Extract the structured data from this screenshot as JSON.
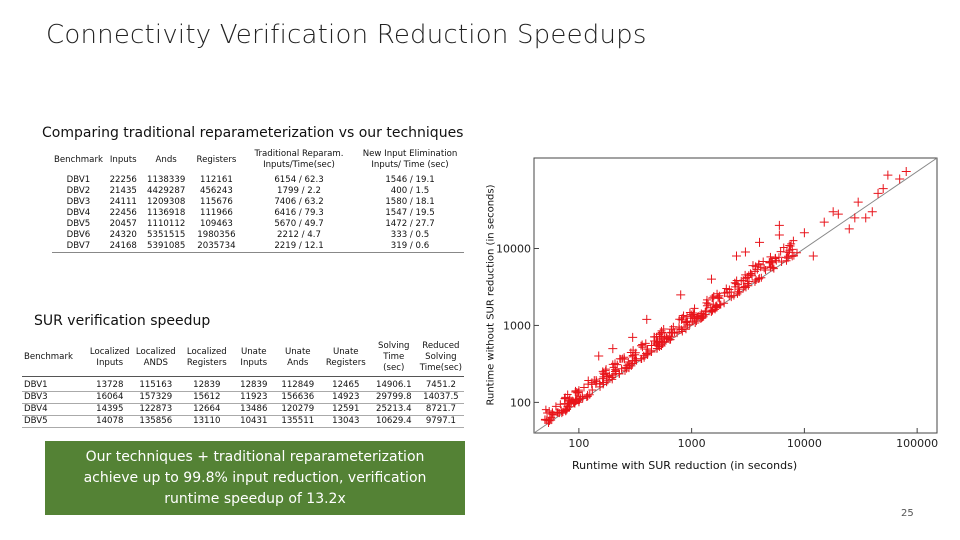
{
  "slide": {
    "title": "Connectivity Verification Reduction Speedups",
    "subtitle": "Comparing traditional reparameterization vs our techniques",
    "sur_title": "SUR verification speedup",
    "callout": "Our techniques + traditional reparameterization achieve up to 99.8% input reduction, verification runtime speedup of 13.2x",
    "page_number": "25"
  },
  "table1": {
    "headers": [
      "Benchmark",
      "Inputs",
      "Ands",
      "Registers",
      "Traditional Reparam. Inputs/Time(sec)",
      "New Input Elimination Inputs/ Time (sec)"
    ],
    "rows": [
      [
        "DBV1",
        "22256",
        "1138339",
        "112161",
        "6154 / 62.3",
        "1546 / 19.1"
      ],
      [
        "DBV2",
        "21435",
        "4429287",
        "456243",
        "1799 / 2.2",
        "400 / 1.5"
      ],
      [
        "DBV3",
        "24111",
        "1209308",
        "115676",
        "7406 / 63.2",
        "1580 / 18.1"
      ],
      [
        "DBV4",
        "22456",
        "1136918",
        "111966",
        "6416 / 79.3",
        "1547 / 19.5"
      ],
      [
        "DBV5",
        "20457",
        "1110112",
        "109463",
        "5670 / 49.7",
        "1472 / 27.7"
      ],
      [
        "DBV6",
        "24320",
        "5351515",
        "1980356",
        "2212 / 4.7",
        "333 / 0.5"
      ],
      [
        "DBV7",
        "24168",
        "5391085",
        "2035734",
        "2219 / 12.1",
        "319 / 0.6"
      ]
    ]
  },
  "table2": {
    "headers": [
      "Benchmark",
      "Localized Inputs",
      "Localized ANDS",
      "Localized Registers",
      "Unate Inputs",
      "Unate Ands",
      "Unate Registers",
      "Solving Time (sec)",
      "Reduced Solving Time(sec)"
    ],
    "rows": [
      [
        "DBV1",
        "13728",
        "115163",
        "12839",
        "12839",
        "112849",
        "12465",
        "14906.1",
        "7451.2"
      ],
      [
        "DBV3",
        "16064",
        "157329",
        "15612",
        "11923",
        "156636",
        "14923",
        "29799.8",
        "14037.5"
      ],
      [
        "DBV4",
        "14395",
        "122873",
        "12664",
        "13486",
        "120279",
        "12591",
        "25213.4",
        "8721.7"
      ],
      [
        "DBV5",
        "14078",
        "135856",
        "13110",
        "10431",
        "135511",
        "13043",
        "10629.4",
        "9797.1"
      ]
    ]
  },
  "chart_data": {
    "type": "scatter",
    "title": "",
    "xlabel": "Runtime with SUR reduction (in seconds)",
    "ylabel": "Runtime without SUR reduction (in seconds)",
    "xscale": "log",
    "yscale": "log",
    "xlim": [
      40,
      150000
    ],
    "ylim": [
      40,
      150000
    ],
    "x_ticks": [
      "100",
      "1000",
      "10000",
      "100000"
    ],
    "y_ticks": [
      "100",
      "1000",
      "10000"
    ],
    "reference_line": "y = x",
    "marker": "+",
    "marker_color": "#e8141b",
    "clusters": [
      {
        "name": "main",
        "x_range": [
          50,
          9000
        ],
        "ratio_range": [
          1.0,
          1.6
        ],
        "count": 340
      },
      {
        "name": "scattered",
        "points": [
          [
            3000,
            9000
          ],
          [
            4000,
            12000
          ],
          [
            6000,
            20000
          ],
          [
            2500,
            8000
          ],
          [
            18000,
            30000
          ],
          [
            20000,
            28000
          ],
          [
            30000,
            40000
          ],
          [
            40000,
            30000
          ],
          [
            28000,
            25000
          ],
          [
            50000,
            60000
          ],
          [
            45000,
            52000
          ],
          [
            70000,
            80000
          ],
          [
            80000,
            100000
          ],
          [
            35000,
            25000
          ],
          [
            25000,
            18000
          ],
          [
            15000,
            22000
          ],
          [
            10000,
            16000
          ],
          [
            12000,
            8000
          ],
          [
            55000,
            90000
          ],
          [
            1500,
            4000
          ],
          [
            800,
            2500
          ],
          [
            400,
            1200
          ],
          [
            300,
            700
          ],
          [
            150,
            400
          ],
          [
            200,
            500
          ],
          [
            6000,
            15000
          ],
          [
            3500,
            6000
          ],
          [
            7000,
            9000
          ]
        ]
      }
    ]
  }
}
